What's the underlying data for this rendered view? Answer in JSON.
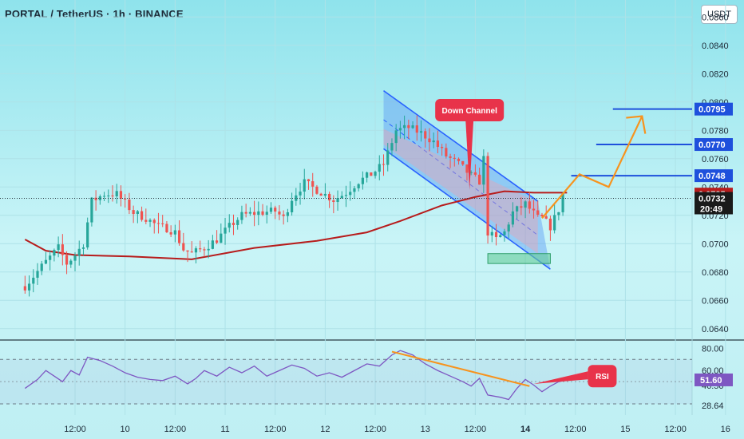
{
  "header": {
    "title": "PORTAL / TetherUS · 1h · BINANCE",
    "currency_button": "USDT"
  },
  "colors": {
    "up": "#26a69a",
    "down": "#ef5350",
    "ma": "#b71c1c",
    "channel_line": "#2962ff",
    "channel_fill": "#5b9cf5",
    "projection": "#f7931e",
    "target_line": "#1e50dc",
    "rsi_line": "#7e57c2",
    "callout": "#e8334a",
    "support_box": "#66cc99"
  },
  "chart_data": [
    {
      "type": "candlestick",
      "title": "PORTAL / TetherUS · 1h · BINANCE",
      "y_unit": "USDT",
      "ylim": [
        0.0632,
        0.0872
      ],
      "y_ticks": [
        "0.0640",
        "0.0660",
        "0.0680",
        "0.0700",
        "0.0720",
        "0.0740",
        "0.0760",
        "0.0780",
        "0.0800",
        "0.0820",
        "0.0840",
        "0.0860"
      ],
      "x_ticks": [
        "12:00",
        "10",
        "12:00",
        "11",
        "12:00",
        "12",
        "12:00",
        "13",
        "12:00",
        "14",
        "12:00",
        "15",
        "12:00",
        "16"
      ],
      "x_domain_hours": [
        -6,
        160
      ],
      "x_tick_hours": [
        12,
        24,
        36,
        48,
        60,
        72,
        84,
        96,
        108,
        120,
        132,
        144,
        156,
        168
      ],
      "price_series": [
        [
          0,
          0.067
        ],
        [
          4,
          0.0684
        ],
        [
          8,
          0.0697
        ],
        [
          10,
          0.0686
        ],
        [
          12,
          0.0692
        ],
        [
          14,
          0.07
        ],
        [
          16,
          0.073
        ],
        [
          19,
          0.0735
        ],
        [
          22,
          0.0735
        ],
        [
          26,
          0.0722
        ],
        [
          29,
          0.0718
        ],
        [
          32,
          0.0712
        ],
        [
          34,
          0.0711
        ],
        [
          36,
          0.0708
        ],
        [
          38,
          0.0696
        ],
        [
          40,
          0.0693
        ],
        [
          43,
          0.0697
        ],
        [
          46,
          0.0703
        ],
        [
          49,
          0.0712
        ],
        [
          52,
          0.072
        ],
        [
          56,
          0.0722
        ],
        [
          60,
          0.0723
        ],
        [
          62,
          0.0718
        ],
        [
          64,
          0.0732
        ],
        [
          67,
          0.0743
        ],
        [
          70,
          0.0738
        ],
        [
          74,
          0.0731
        ],
        [
          77,
          0.0736
        ],
        [
          80,
          0.0744
        ],
        [
          83,
          0.0749
        ],
        [
          86,
          0.0756
        ],
        [
          89,
          0.078
        ],
        [
          92,
          0.0782
        ],
        [
          95,
          0.0778
        ],
        [
          98,
          0.0772
        ],
        [
          101,
          0.0762
        ],
        [
          104,
          0.0756
        ],
        [
          107,
          0.0748
        ],
        [
          109,
          0.0744
        ],
        [
          110,
          0.076
        ],
        [
          111,
          0.0708
        ],
        [
          113,
          0.0703
        ],
        [
          115,
          0.0708
        ],
        [
          117,
          0.0722
        ],
        [
          120,
          0.0728
        ],
        [
          123,
          0.0718
        ],
        [
          124,
          0.0718
        ],
        [
          126,
          0.0712
        ],
        [
          128,
          0.0724
        ],
        [
          129,
          0.0735
        ]
      ],
      "moving_average": [
        [
          0,
          0.0703
        ],
        [
          5,
          0.0695
        ],
        [
          12,
          0.0692
        ],
        [
          25,
          0.0691
        ],
        [
          40,
          0.0689
        ],
        [
          55,
          0.0697
        ],
        [
          70,
          0.0702
        ],
        [
          82,
          0.0708
        ],
        [
          90,
          0.0716
        ],
        [
          100,
          0.0727
        ],
        [
          108,
          0.0733
        ],
        [
          115,
          0.0737
        ],
        [
          122,
          0.0736
        ],
        [
          130,
          0.0736
        ]
      ],
      "current_price": "0.0732",
      "countdown": "20:49",
      "price_labels": [
        {
          "value": 0.0795,
          "label": "0.0795",
          "kind": "target"
        },
        {
          "value": 0.077,
          "label": "0.0770",
          "kind": "target"
        },
        {
          "value": 0.0748,
          "label": "0.0748",
          "kind": "target"
        },
        {
          "value": 0.0735,
          "label": "0.0735",
          "kind": "ma"
        }
      ],
      "down_channel": {
        "label": "Down Channel",
        "upper": [
          [
            86,
            0.0808
          ],
          [
            123,
            0.073
          ]
        ],
        "lower": [
          [
            86,
            0.0767
          ],
          [
            126,
            0.0682
          ]
        ]
      },
      "support_zone": [
        0.0686,
        0.0693
      ],
      "projection_path": [
        [
          124,
          0.0718
        ],
        [
          133,
          0.0749
        ],
        [
          140,
          0.074
        ],
        [
          148,
          0.079
        ]
      ]
    },
    {
      "type": "line",
      "title": "RSI",
      "ylim": [
        20,
        86
      ],
      "y_ticks": [
        "80.00",
        "60.00",
        "46.50",
        "28.64"
      ],
      "current_value": "51.60",
      "band_levels": [
        70,
        30
      ],
      "rsi_series": [
        [
          0,
          44
        ],
        [
          3,
          52
        ],
        [
          5,
          60
        ],
        [
          7,
          55
        ],
        [
          9,
          50
        ],
        [
          11,
          60
        ],
        [
          13,
          56
        ],
        [
          15,
          72
        ],
        [
          18,
          69
        ],
        [
          21,
          64
        ],
        [
          24,
          58
        ],
        [
          27,
          54
        ],
        [
          30,
          52
        ],
        [
          33,
          51
        ],
        [
          36,
          55
        ],
        [
          39,
          48
        ],
        [
          41,
          53
        ],
        [
          43,
          60
        ],
        [
          46,
          55
        ],
        [
          49,
          63
        ],
        [
          52,
          58
        ],
        [
          55,
          64
        ],
        [
          58,
          55
        ],
        [
          61,
          60
        ],
        [
          64,
          65
        ],
        [
          67,
          62
        ],
        [
          70,
          55
        ],
        [
          73,
          58
        ],
        [
          76,
          54
        ],
        [
          79,
          60
        ],
        [
          82,
          66
        ],
        [
          85,
          64
        ],
        [
          88,
          74
        ],
        [
          90,
          78
        ],
        [
          93,
          74
        ],
        [
          96,
          66
        ],
        [
          99,
          60
        ],
        [
          102,
          55
        ],
        [
          105,
          50
        ],
        [
          107,
          46
        ],
        [
          109,
          53
        ],
        [
          111,
          38
        ],
        [
          114,
          36
        ],
        [
          116,
          34
        ],
        [
          118,
          44
        ],
        [
          120,
          52
        ],
        [
          122,
          47
        ],
        [
          124,
          41
        ],
        [
          126,
          46
        ],
        [
          128,
          50
        ],
        [
          130,
          51.6
        ]
      ],
      "divergence_line": [
        [
          88,
          77
        ],
        [
          121,
          46
        ]
      ]
    }
  ]
}
